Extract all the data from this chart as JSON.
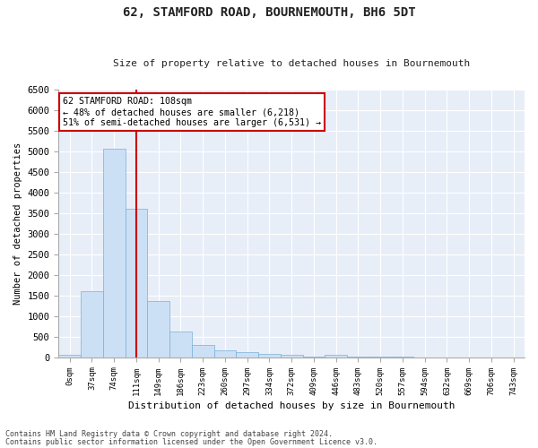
{
  "title": "62, STAMFORD ROAD, BOURNEMOUTH, BH6 5DT",
  "subtitle": "Size of property relative to detached houses in Bournemouth",
  "xlabel": "Distribution of detached houses by size in Bournemouth",
  "ylabel": "Number of detached properties",
  "bar_color": "#cce0f5",
  "bar_edge_color": "#7aafd4",
  "background_color": "#e8eef8",
  "grid_color": "#ffffff",
  "vline_col_index": 3,
  "vline_color": "#cc0000",
  "annotation_line1": "62 STAMFORD ROAD: 108sqm",
  "annotation_line2": "← 48% of detached houses are smaller (6,218)",
  "annotation_line3": "51% of semi-detached houses are larger (6,531) →",
  "annotation_box_color": "#ffffff",
  "annotation_box_edge": "#cc0000",
  "categories": [
    "0sqm",
    "37sqm",
    "74sqm",
    "111sqm",
    "149sqm",
    "186sqm",
    "223sqm",
    "260sqm",
    "297sqm",
    "334sqm",
    "372sqm",
    "409sqm",
    "446sqm",
    "483sqm",
    "520sqm",
    "557sqm",
    "594sqm",
    "632sqm",
    "669sqm",
    "706sqm",
    "743sqm"
  ],
  "values": [
    55,
    1600,
    5050,
    3600,
    1350,
    630,
    300,
    165,
    125,
    75,
    55,
    15,
    65,
    5,
    2,
    2,
    0,
    0,
    0,
    0,
    0
  ],
  "ylim": [
    0,
    6500
  ],
  "yticks": [
    0,
    500,
    1000,
    1500,
    2000,
    2500,
    3000,
    3500,
    4000,
    4500,
    5000,
    5500,
    6000,
    6500
  ],
  "footer_line1": "Contains HM Land Registry data © Crown copyright and database right 2024.",
  "footer_line2": "Contains public sector information licensed under the Open Government Licence v3.0."
}
